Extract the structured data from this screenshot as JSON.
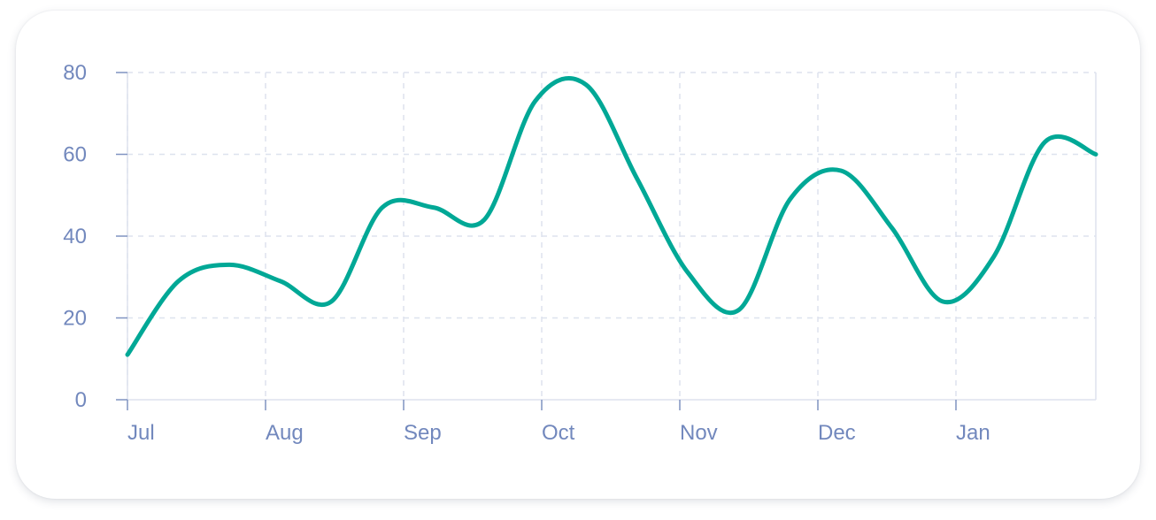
{
  "colors": {
    "line": "#00a896",
    "grid": "#dde2ee",
    "axis": "#7f93c1",
    "tick_text": "#7288bd",
    "card_bg": "#ffffff"
  },
  "chart_data": {
    "type": "line",
    "title": "",
    "xlabel": "",
    "ylabel": "",
    "curve": "smooth",
    "grid": true,
    "ylim": [
      0,
      80
    ],
    "y_ticks": [
      0,
      20,
      40,
      60,
      80
    ],
    "x_tick_labels": [
      "Jul",
      "Aug",
      "Sep",
      "Oct",
      "Nov",
      "Dec",
      "Jan"
    ],
    "series": [
      {
        "values": [
          11,
          29,
          33,
          29,
          24,
          47,
          47,
          44,
          73,
          77,
          54,
          31,
          22,
          49,
          56,
          42,
          24,
          35,
          63,
          60
        ]
      }
    ]
  }
}
